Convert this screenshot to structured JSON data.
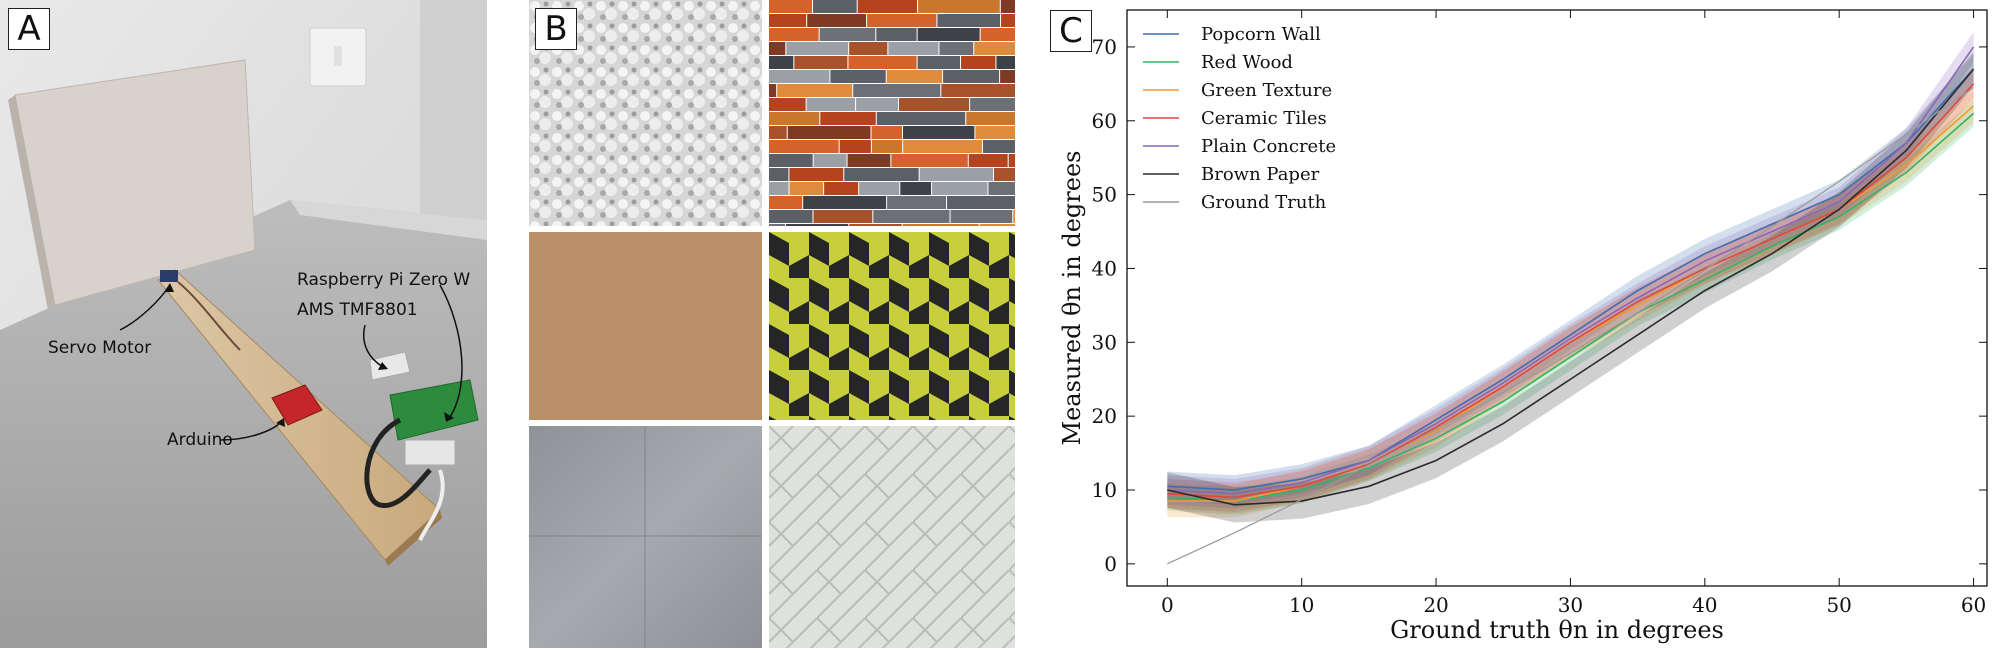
{
  "panel_a": {
    "label": "A",
    "annotations": {
      "servo": "Servo Motor",
      "pi": "Raspberry Pi Zero W",
      "sensor": "AMS TMF8801",
      "arduino": "Arduino"
    }
  },
  "panel_b": {
    "label": "B",
    "tiles": [
      "popcorn-wall",
      "red-wood",
      "brown-paper",
      "green-texture",
      "plain-concrete",
      "ceramic-tiles"
    ]
  },
  "panel_c": {
    "label": "C"
  },
  "chart_data": {
    "type": "line",
    "xlabel": "Ground truth θn in degrees",
    "ylabel": "Measured θn in degrees",
    "xlim": [
      -3,
      61
    ],
    "ylim": [
      -3,
      75
    ],
    "xticks": [
      0,
      10,
      20,
      30,
      40,
      50,
      60
    ],
    "yticks": [
      0,
      10,
      20,
      30,
      40,
      50,
      60,
      70
    ],
    "legend_position": "top-left",
    "x": [
      0,
      5,
      10,
      15,
      20,
      25,
      30,
      35,
      40,
      45,
      50,
      55,
      60
    ],
    "series": [
      {
        "name": "Popcorn Wall",
        "color": "#3c6fb0",
        "values": [
          10.5,
          10,
          11.5,
          14,
          19.5,
          25,
          31,
          37,
          42,
          46,
          50,
          57,
          67
        ],
        "band": 2.0
      },
      {
        "name": "Red Wood",
        "color": "#2fb565",
        "values": [
          9,
          8.5,
          10,
          13,
          17,
          22,
          28,
          34,
          38.5,
          43,
          47,
          53,
          61
        ],
        "band": 1.8
      },
      {
        "name": "Green Texture",
        "color": "#f39a32",
        "values": [
          8.5,
          8.5,
          10.5,
          13.5,
          18,
          24,
          30,
          35,
          40,
          44,
          48,
          54,
          62
        ],
        "band": 2.2
      },
      {
        "name": "Ceramic Tiles",
        "color": "#e2473b",
        "values": [
          9.5,
          9,
          10.5,
          13.5,
          18.5,
          24,
          30,
          35.5,
          40,
          44,
          48,
          55,
          65
        ],
        "band": 2.0
      },
      {
        "name": "Plain Concrete",
        "color": "#8a66b8",
        "values": [
          10,
          9.5,
          11,
          14,
          19,
          24.5,
          30.5,
          36,
          41,
          45,
          49,
          57,
          70
        ],
        "band": 2.0
      },
      {
        "name": "Brown Paper",
        "color": "#2b2b2b",
        "values": [
          10,
          8,
          8.5,
          10.5,
          14,
          19,
          25,
          31,
          37,
          42,
          48,
          56,
          67
        ],
        "band": 2.4
      },
      {
        "name": "Ground Truth",
        "color": "#999999",
        "values": [
          0,
          4.2,
          8.7,
          13.4,
          18.2,
          23.2,
          28.5,
          34,
          39.8,
          45.7,
          51.8,
          58.2,
          64.5
        ],
        "band": 0
      }
    ]
  }
}
